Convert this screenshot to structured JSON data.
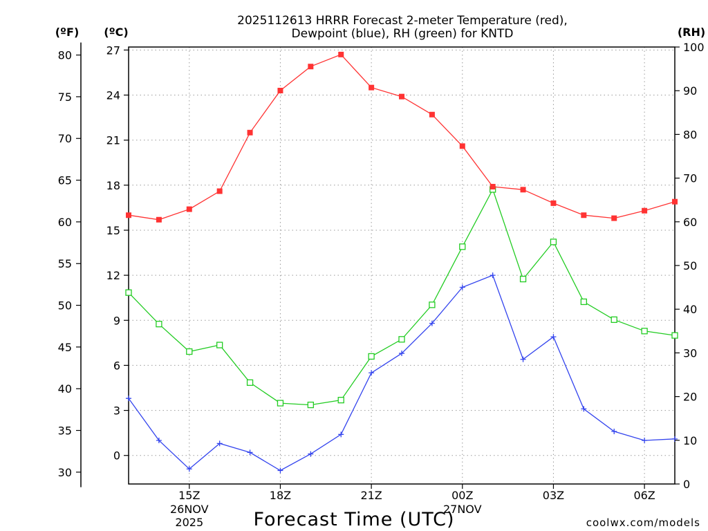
{
  "chart_data": {
    "type": "line",
    "title_line1": "2025112613 HRRR Forecast 2-meter Temperature (red),",
    "title_line2": "Dewpoint (blue), RH (green) for KNTD",
    "xlabel": "Forecast Time (UTC)",
    "credit": "coolwx.com/models",
    "colors": {
      "temperature": "#ff3333",
      "dewpoint": "#3344ee",
      "rh": "#22cc22",
      "grid": "#999999",
      "axis": "#000000"
    },
    "x_hours": [
      13,
      14,
      15,
      16,
      17,
      18,
      19,
      20,
      21,
      22,
      23,
      24,
      25,
      26,
      27,
      28,
      29,
      30,
      31
    ],
    "xlim": [
      13,
      31
    ],
    "x_ticks": [
      {
        "hour": 15,
        "label": "15Z",
        "date": "26NOV",
        "year": "2025"
      },
      {
        "hour": 18,
        "label": "18Z"
      },
      {
        "hour": 21,
        "label": "21Z"
      },
      {
        "hour": 24,
        "label": "00Z",
        "date": "27NOV"
      },
      {
        "hour": 27,
        "label": "03Z"
      },
      {
        "hour": 30,
        "label": "06Z"
      }
    ],
    "left_axis_f": {
      "unit": "(ºF)",
      "ticks": [
        "30",
        "35",
        "40",
        "45",
        "50",
        "55",
        "60",
        "65",
        "70",
        "75",
        "80"
      ]
    },
    "left_axis_c": {
      "unit": "(ºC)",
      "ylim": [
        -1.9,
        27.2
      ],
      "ticks": [
        "0",
        "3",
        "6",
        "9",
        "12",
        "15",
        "18",
        "21",
        "24",
        "27"
      ]
    },
    "right_axis_rh": {
      "unit": "(RH)",
      "ylim": [
        0,
        100
      ],
      "ticks": [
        "0",
        "10",
        "20",
        "30",
        "40",
        "50",
        "60",
        "70",
        "80",
        "90",
        "100"
      ]
    },
    "series": [
      {
        "name": "Temperature",
        "units": "C",
        "values": [
          16.0,
          15.7,
          16.4,
          17.6,
          21.5,
          24.3,
          25.9,
          26.7,
          24.5,
          23.9,
          22.7,
          20.6,
          17.9,
          17.7,
          16.8,
          16.0,
          15.8,
          16.3,
          16.9
        ]
      },
      {
        "name": "Dewpoint",
        "units": "C",
        "values": [
          3.8,
          1.0,
          -0.9,
          0.8,
          0.2,
          -1.0,
          0.1,
          1.4,
          5.5,
          6.8,
          8.8,
          11.2,
          12.0,
          6.4,
          7.9,
          3.1,
          1.6,
          1.0,
          1.1
        ]
      },
      {
        "name": "RH",
        "units": "%",
        "values": [
          43.8,
          36.6,
          30.3,
          31.8,
          23.2,
          18.5,
          18.1,
          19.2,
          29.2,
          33.1,
          41.0,
          54.3,
          67.4,
          46.9,
          55.4,
          41.7,
          37.6,
          35.0,
          34.0
        ]
      }
    ]
  }
}
